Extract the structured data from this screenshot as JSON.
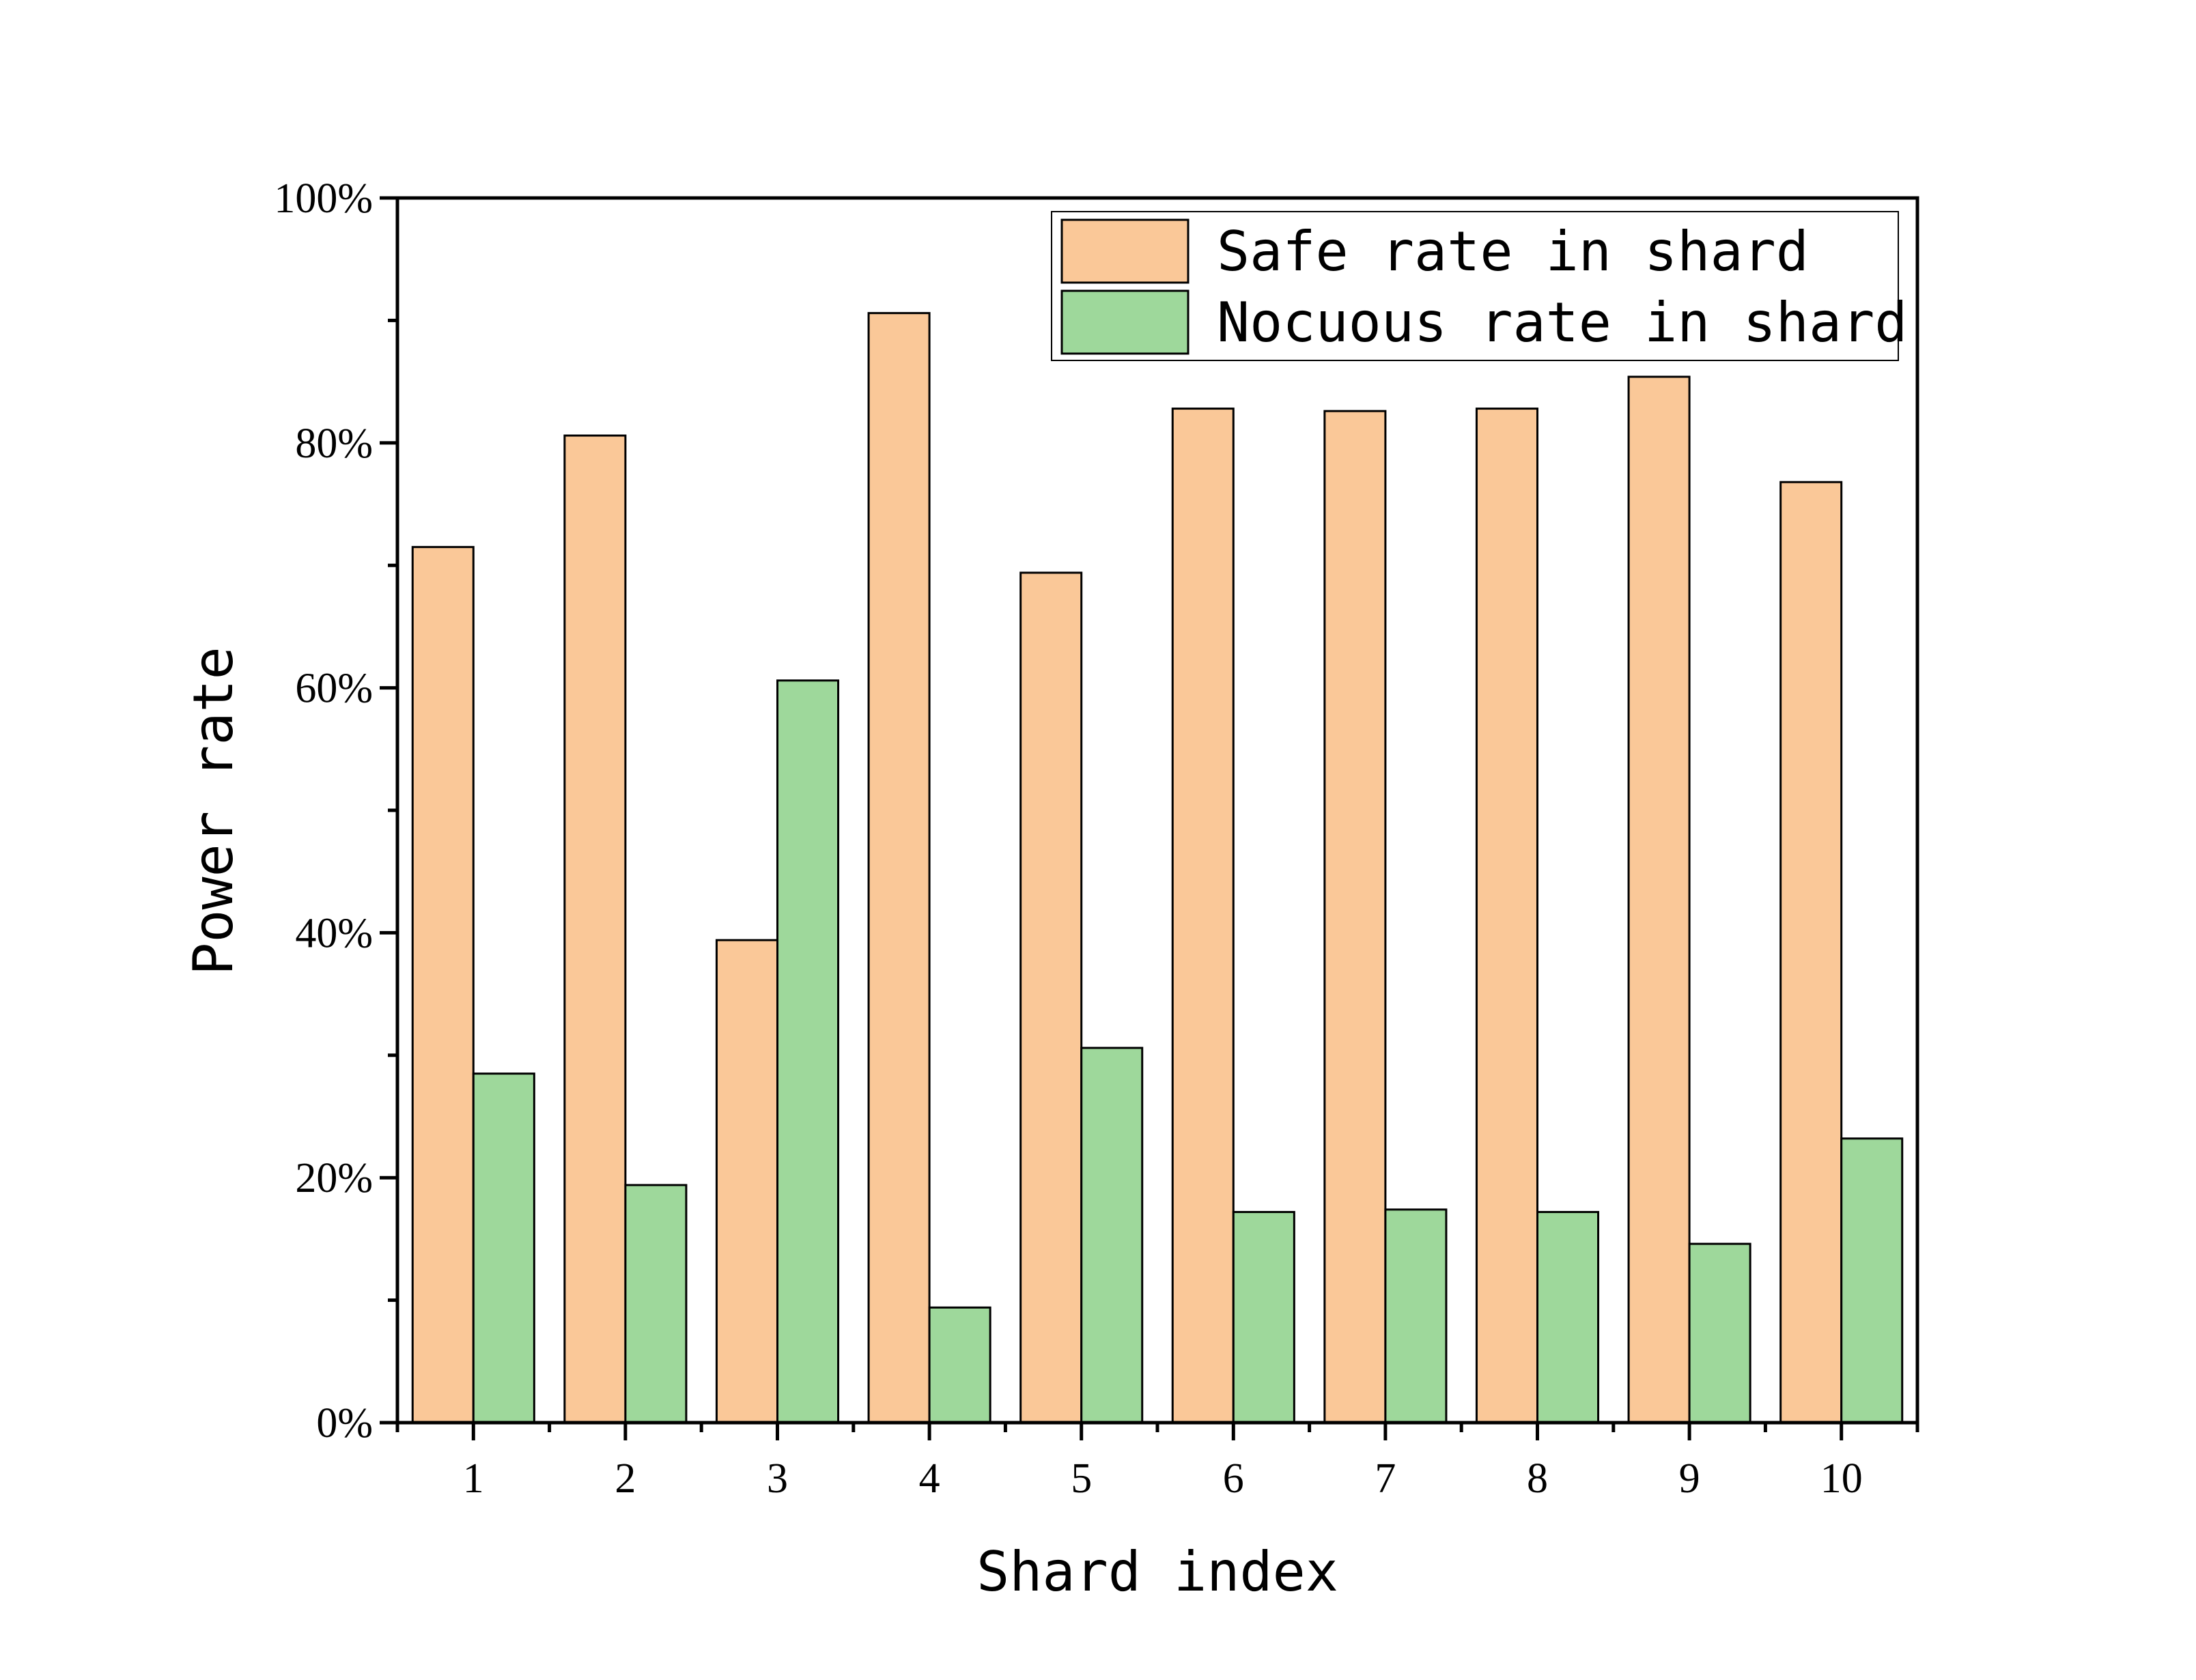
{
  "chart_data": {
    "type": "bar",
    "xlabel": "Shard index",
    "ylabel": "Power rate",
    "categories": [
      "1",
      "2",
      "3",
      "4",
      "5",
      "6",
      "7",
      "8",
      "9",
      "10"
    ],
    "y_tick_labels": [
      "0%",
      "20%",
      "40%",
      "60%",
      "80%",
      "100%"
    ],
    "ylim": [
      0,
      100
    ],
    "y_unit": "%",
    "legend_position": "top-right",
    "grid": false,
    "series": [
      {
        "name": "Safe rate in shard",
        "color": "#FAC898",
        "values": [
          71.5,
          80.6,
          39.4,
          90.6,
          69.4,
          82.8,
          82.6,
          82.8,
          85.4,
          76.8
        ]
      },
      {
        "name": "Nocuous rate in shard",
        "color": "#9ED89B",
        "values": [
          28.5,
          19.4,
          60.6,
          9.4,
          30.6,
          17.2,
          17.4,
          17.2,
          14.6,
          23.2
        ]
      }
    ]
  }
}
